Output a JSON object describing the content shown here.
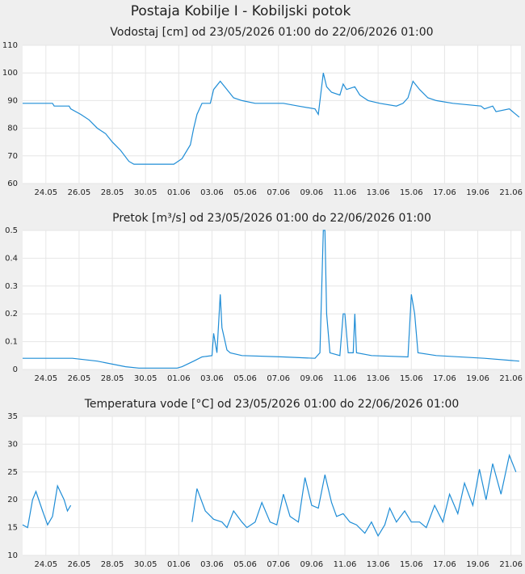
{
  "title": "Postaja Kobilje I - Kobiljski potok",
  "chart_data": [
    {
      "type": "line",
      "title": "Vodostaj [cm] od 23/05/2026 01:00 do 22/06/2026 01:00",
      "color": "#1f8dd6",
      "grid": true,
      "xlim": [
        0,
        30
      ],
      "ylim": [
        60,
        110
      ],
      "yticks": [
        60,
        70,
        80,
        90,
        100,
        110
      ],
      "xticks": [
        {
          "value": 1.4,
          "label": "24.05"
        },
        {
          "value": 3.4,
          "label": "26.05"
        },
        {
          "value": 5.4,
          "label": "28.05"
        },
        {
          "value": 7.4,
          "label": "30.05"
        },
        {
          "value": 9.4,
          "label": "01.06"
        },
        {
          "value": 11.4,
          "label": "03.06"
        },
        {
          "value": 13.4,
          "label": "05.06"
        },
        {
          "value": 15.4,
          "label": "07.06"
        },
        {
          "value": 17.4,
          "label": "09.06"
        },
        {
          "value": 19.4,
          "label": "11.06"
        },
        {
          "value": 21.4,
          "label": "13.06"
        },
        {
          "value": 23.4,
          "label": "15.06"
        },
        {
          "value": 25.4,
          "label": "17.06"
        },
        {
          "value": 27.4,
          "label": "19.06"
        },
        {
          "value": 29.4,
          "label": "21.06"
        }
      ],
      "x": [
        0,
        1.8,
        1.9,
        2.8,
        2.9,
        3.5,
        4.0,
        4.5,
        5.0,
        5.4,
        5.9,
        6.4,
        6.7,
        9.1,
        9.6,
        10.1,
        10.3,
        10.5,
        10.8,
        11.3,
        11.5,
        11.9,
        12.3,
        12.7,
        13.2,
        14.0,
        14.7,
        15.7,
        16.6,
        17.6,
        17.8,
        18.1,
        18.3,
        18.6,
        19.1,
        19.3,
        19.5,
        20.0,
        20.3,
        20.8,
        21.5,
        22.5,
        22.9,
        23.2,
        23.5,
        23.9,
        24.4,
        24.9,
        25.9,
        27.6,
        27.8,
        28.3,
        28.5,
        29.3,
        29.9
      ],
      "values": [
        89,
        89,
        88,
        88,
        87,
        85,
        83,
        80,
        78,
        75,
        72,
        68,
        67,
        67,
        69,
        74,
        80,
        85,
        89,
        89,
        94,
        97,
        94,
        91,
        90,
        89,
        89,
        89,
        88,
        87,
        85,
        100,
        95,
        93,
        92,
        96,
        94,
        95,
        92,
        90,
        89,
        88,
        89,
        91,
        97,
        94,
        91,
        90,
        89,
        88,
        87,
        88,
        86,
        87,
        84
      ]
    },
    {
      "type": "line",
      "title": "Pretok [m³/s] od 23/05/2026 01:00 do 22/06/2026 01:00",
      "color": "#1f8dd6",
      "grid": true,
      "xlim": [
        0,
        30
      ],
      "ylim": [
        0,
        0.5
      ],
      "yticks": [
        0,
        0.1,
        0.2,
        0.3,
        0.4,
        0.5
      ],
      "xticks": [
        {
          "value": 1.4,
          "label": "24.05"
        },
        {
          "value": 3.4,
          "label": "26.05"
        },
        {
          "value": 5.4,
          "label": "28.05"
        },
        {
          "value": 7.4,
          "label": "30.05"
        },
        {
          "value": 9.4,
          "label": "01.06"
        },
        {
          "value": 11.4,
          "label": "03.06"
        },
        {
          "value": 13.4,
          "label": "05.06"
        },
        {
          "value": 15.4,
          "label": "07.06"
        },
        {
          "value": 17.4,
          "label": "09.06"
        },
        {
          "value": 19.4,
          "label": "11.06"
        },
        {
          "value": 21.4,
          "label": "13.06"
        },
        {
          "value": 23.4,
          "label": "15.06"
        },
        {
          "value": 25.4,
          "label": "17.06"
        },
        {
          "value": 27.4,
          "label": "19.06"
        },
        {
          "value": 29.4,
          "label": "21.06"
        }
      ],
      "x": [
        0,
        3.0,
        4.5,
        6.2,
        7.0,
        9.3,
        9.6,
        10.3,
        10.8,
        11.4,
        11.5,
        11.7,
        11.9,
        12.0,
        12.3,
        12.5,
        13.2,
        15.7,
        17.6,
        17.9,
        18.1,
        18.2,
        18.3,
        18.5,
        19.1,
        19.3,
        19.4,
        19.6,
        19.9,
        20.0,
        20.1,
        21.0,
        23.2,
        23.4,
        23.6,
        23.8,
        24.9,
        27.8,
        29.9
      ],
      "values": [
        0.04,
        0.04,
        0.03,
        0.01,
        0.005,
        0.005,
        0.01,
        0.03,
        0.045,
        0.05,
        0.13,
        0.06,
        0.27,
        0.15,
        0.07,
        0.06,
        0.05,
        0.045,
        0.04,
        0.06,
        0.5,
        0.5,
        0.2,
        0.06,
        0.05,
        0.2,
        0.2,
        0.06,
        0.06,
        0.2,
        0.06,
        0.05,
        0.045,
        0.27,
        0.2,
        0.06,
        0.05,
        0.04,
        0.03
      ]
    },
    {
      "type": "line",
      "title": "Temperatura vode [°C] od 23/05/2026 01:00 do 22/06/2026 01:00",
      "color": "#1f8dd6",
      "grid": true,
      "xlim": [
        0,
        30
      ],
      "ylim": [
        10,
        35
      ],
      "yticks": [
        10,
        15,
        20,
        25,
        30,
        35
      ],
      "xticks": [
        {
          "value": 1.4,
          "label": "24.05"
        },
        {
          "value": 3.4,
          "label": "26.05"
        },
        {
          "value": 5.4,
          "label": "28.05"
        },
        {
          "value": 7.4,
          "label": "30.05"
        },
        {
          "value": 9.4,
          "label": "01.06"
        },
        {
          "value": 11.4,
          "label": "03.06"
        },
        {
          "value": 13.4,
          "label": "05.06"
        },
        {
          "value": 15.4,
          "label": "07.06"
        },
        {
          "value": 17.4,
          "label": "09.06"
        },
        {
          "value": 19.4,
          "label": "11.06"
        },
        {
          "value": 21.4,
          "label": "13.06"
        },
        {
          "value": 23.4,
          "label": "15.06"
        },
        {
          "value": 25.4,
          "label": "17.06"
        },
        {
          "value": 27.4,
          "label": "19.06"
        },
        {
          "value": 29.4,
          "label": "21.06"
        }
      ],
      "x": [
        0,
        0.3,
        0.6,
        0.8,
        1.2,
        1.5,
        1.8,
        2.1,
        2.5,
        2.7,
        2.9,
        6.5,
        10.2,
        10.5,
        11.0,
        11.5,
        12.0,
        12.3,
        12.7,
        13.2,
        13.5,
        14.0,
        14.4,
        14.9,
        15.3,
        15.7,
        16.1,
        16.6,
        17.0,
        17.4,
        17.8,
        18.2,
        18.6,
        18.9,
        19.3,
        19.7,
        20.1,
        20.6,
        21.0,
        21.4,
        21.8,
        22.1,
        22.5,
        23.0,
        23.4,
        23.9,
        24.3,
        24.8,
        25.3,
        25.7,
        26.2,
        26.6,
        27.1,
        27.5,
        27.9,
        28.3,
        28.8,
        29.3,
        29.7
      ],
      "values": [
        15.5,
        15,
        20,
        21.5,
        18,
        15.5,
        17,
        22.5,
        20,
        18,
        19,
        null,
        16,
        22,
        18,
        16.5,
        16,
        15,
        18,
        16,
        15,
        16,
        19.5,
        16,
        15.5,
        21,
        17,
        16,
        24,
        19,
        18.5,
        24.5,
        19.5,
        17,
        17.5,
        16,
        15.5,
        14,
        16,
        13.5,
        15.5,
        18.5,
        16,
        18,
        16,
        16,
        15,
        19,
        16,
        21,
        17.5,
        23,
        19,
        25.5,
        20,
        26.5,
        21,
        28,
        25
      ]
    }
  ]
}
